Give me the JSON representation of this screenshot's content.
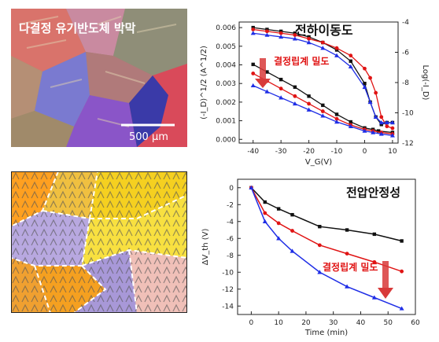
{
  "micrograph": {
    "title": "다결정 유기반도체 박막",
    "scale_label": "500 µm"
  },
  "colors": {
    "black": "#111111",
    "red": "#e01414",
    "blue": "#1f2ee6",
    "annotation": "#e01414",
    "arrow": "#d83a3a"
  },
  "chart_data": [
    {
      "type": "line",
      "title": "전하이동도",
      "xlabel": "V_G(V)",
      "ylabel": "(-I_D)^1/2 (A^1/2)",
      "y2label": "Log(-I_D)",
      "annotation": "결정립계 밀도",
      "xlim": [
        -45,
        12
      ],
      "ylim": [
        -0.0002,
        0.0063
      ],
      "y2lim": [
        -12,
        -4
      ],
      "xticks": [
        -40,
        -30,
        -20,
        -10,
        0,
        10
      ],
      "yticks": [
        0.0,
        0.001,
        0.002,
        0.003,
        0.004,
        0.005,
        0.006
      ],
      "ytick_labels": [
        "0.000",
        "0.001",
        "0.002",
        "0.003",
        "0.004",
        "0.005",
        "0.006"
      ],
      "y2ticks": [
        -4,
        -6,
        -8,
        -10,
        -12
      ],
      "series_sqrt": [
        {
          "color": "black",
          "x": [
            -40,
            -35,
            -30,
            -25,
            -20,
            -15,
            -10,
            -5,
            0,
            2,
            4,
            6,
            8,
            10
          ],
          "y": [
            0.006,
            0.0059,
            0.0058,
            0.0057,
            0.0055,
            0.0052,
            0.0048,
            0.0042,
            0.003,
            0.002,
            0.0012,
            0.0008,
            0.0009,
            0.0009
          ]
        },
        {
          "color": "red",
          "x": [
            -40,
            -35,
            -30,
            -25,
            -20,
            -15,
            -10,
            -5,
            0,
            2,
            4,
            6,
            8,
            10
          ],
          "y": [
            0.0059,
            0.0058,
            0.0057,
            0.0056,
            0.0054,
            0.0052,
            0.0049,
            0.0045,
            0.0038,
            0.0033,
            0.0025,
            0.0012,
            0.0007,
            0.0006
          ]
        },
        {
          "color": "blue",
          "x": [
            -40,
            -35,
            -30,
            -25,
            -20,
            -15,
            -10,
            -5,
            0,
            2,
            4,
            6,
            8,
            10
          ],
          "y": [
            0.0057,
            0.0056,
            0.0055,
            0.0054,
            0.0052,
            0.0049,
            0.0045,
            0.0039,
            0.0028,
            0.002,
            0.0012,
            0.0009,
            0.0009,
            0.0009
          ]
        }
      ],
      "series_log": [
        {
          "color": "black",
          "x": [
            -40,
            -35,
            -30,
            -25,
            -20,
            -15,
            -10,
            -5,
            0,
            3,
            5,
            10
          ],
          "y": [
            -6.8,
            -7.3,
            -7.8,
            -8.3,
            -8.9,
            -9.5,
            -10.1,
            -10.6,
            -11.0,
            -11.1,
            -11.2,
            -11.3
          ]
        },
        {
          "color": "red",
          "x": [
            -40,
            -35,
            -30,
            -25,
            -20,
            -15,
            -10,
            -5,
            0,
            3,
            6,
            10
          ],
          "y": [
            -7.4,
            -7.9,
            -8.4,
            -8.9,
            -9.4,
            -9.9,
            -10.4,
            -10.8,
            -11.1,
            -11.2,
            -11.3,
            -11.4
          ]
        },
        {
          "color": "blue",
          "x": [
            -40,
            -35,
            -30,
            -25,
            -20,
            -15,
            -10,
            -5,
            0,
            3,
            6,
            10
          ],
          "y": [
            -8.2,
            -8.6,
            -9.0,
            -9.4,
            -9.8,
            -10.2,
            -10.6,
            -10.9,
            -11.2,
            -11.3,
            -11.4,
            -11.5
          ]
        }
      ]
    },
    {
      "type": "line",
      "title": "전압안정성",
      "xlabel": "Time (min)",
      "ylabel": "ΔV_th (V)",
      "annotation": "결정립계 밀도",
      "xlim": [
        -5,
        60
      ],
      "ylim": [
        -15,
        1
      ],
      "xticks": [
        0,
        10,
        20,
        30,
        40,
        50,
        60
      ],
      "yticks": [
        0,
        -2,
        -4,
        -6,
        -8,
        -10,
        -12,
        -14
      ],
      "series": [
        {
          "color": "black",
          "x": [
            0,
            5,
            10,
            15,
            25,
            35,
            45,
            55
          ],
          "y": [
            0,
            -1.7,
            -2.5,
            -3.2,
            -4.6,
            -5.0,
            -5.5,
            -6.3
          ]
        },
        {
          "color": "red",
          "x": [
            0,
            5,
            10,
            15,
            25,
            35,
            45,
            55
          ],
          "y": [
            0,
            -3.0,
            -4.2,
            -5.1,
            -6.8,
            -7.8,
            -8.8,
            -9.9
          ]
        },
        {
          "color": "blue",
          "x": [
            0,
            5,
            10,
            15,
            25,
            35,
            45,
            55
          ],
          "y": [
            0,
            -4.0,
            -6.0,
            -7.5,
            -10.0,
            -11.7,
            -13.0,
            -14.3
          ]
        }
      ]
    }
  ]
}
